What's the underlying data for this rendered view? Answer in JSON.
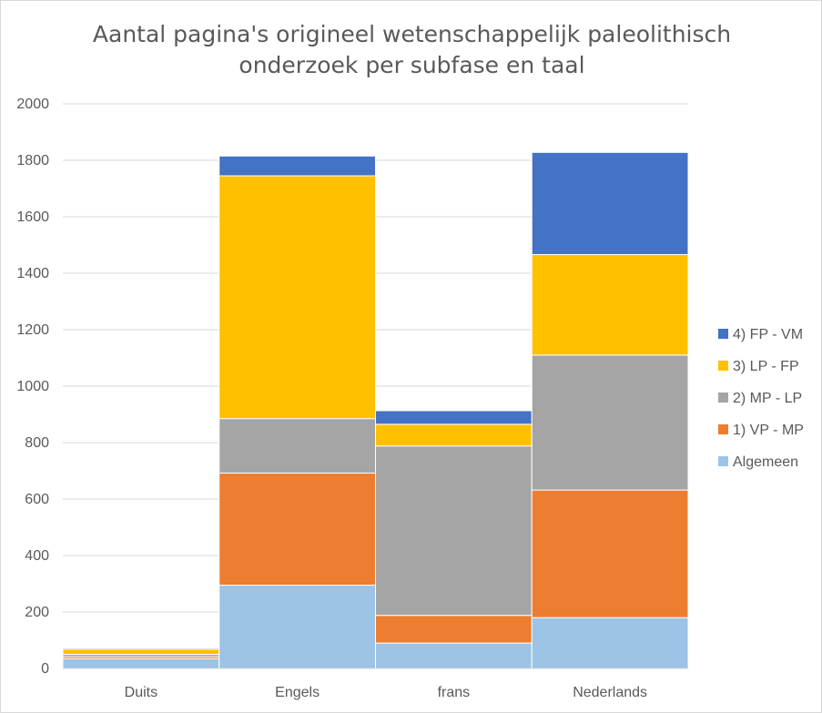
{
  "chart_data": {
    "type": "bar",
    "stacked": true,
    "title_lines": [
      "Aantal pagina's origineel wetenschappelijk paleolithisch",
      "onderzoek per subfase en taal"
    ],
    "categories": [
      "Duits",
      "Engels",
      "frans",
      "Nederlands"
    ],
    "ylim": [
      0,
      2000
    ],
    "yticks": [
      0,
      200,
      400,
      600,
      800,
      1000,
      1200,
      1400,
      1600,
      1800,
      2000
    ],
    "grid": true,
    "legend_position": "right",
    "series": [
      {
        "name": "Algemeen",
        "color": "#9DC3E6",
        "values": [
          35,
          295,
          90,
          180
        ]
      },
      {
        "name": "1) VP - MP",
        "color": "#ED7D31",
        "values": [
          7,
          397,
          98,
          452
        ]
      },
      {
        "name": "2) MP - LP",
        "color": "#A5A5A5",
        "values": [
          8,
          193,
          600,
          478
        ]
      },
      {
        "name": "3) LP - FP",
        "color": "#FFC000",
        "values": [
          18,
          860,
          77,
          356
        ]
      },
      {
        "name": "4) FP - VM",
        "color": "#4472C4",
        "values": [
          4,
          70,
          48,
          362
        ]
      }
    ]
  }
}
